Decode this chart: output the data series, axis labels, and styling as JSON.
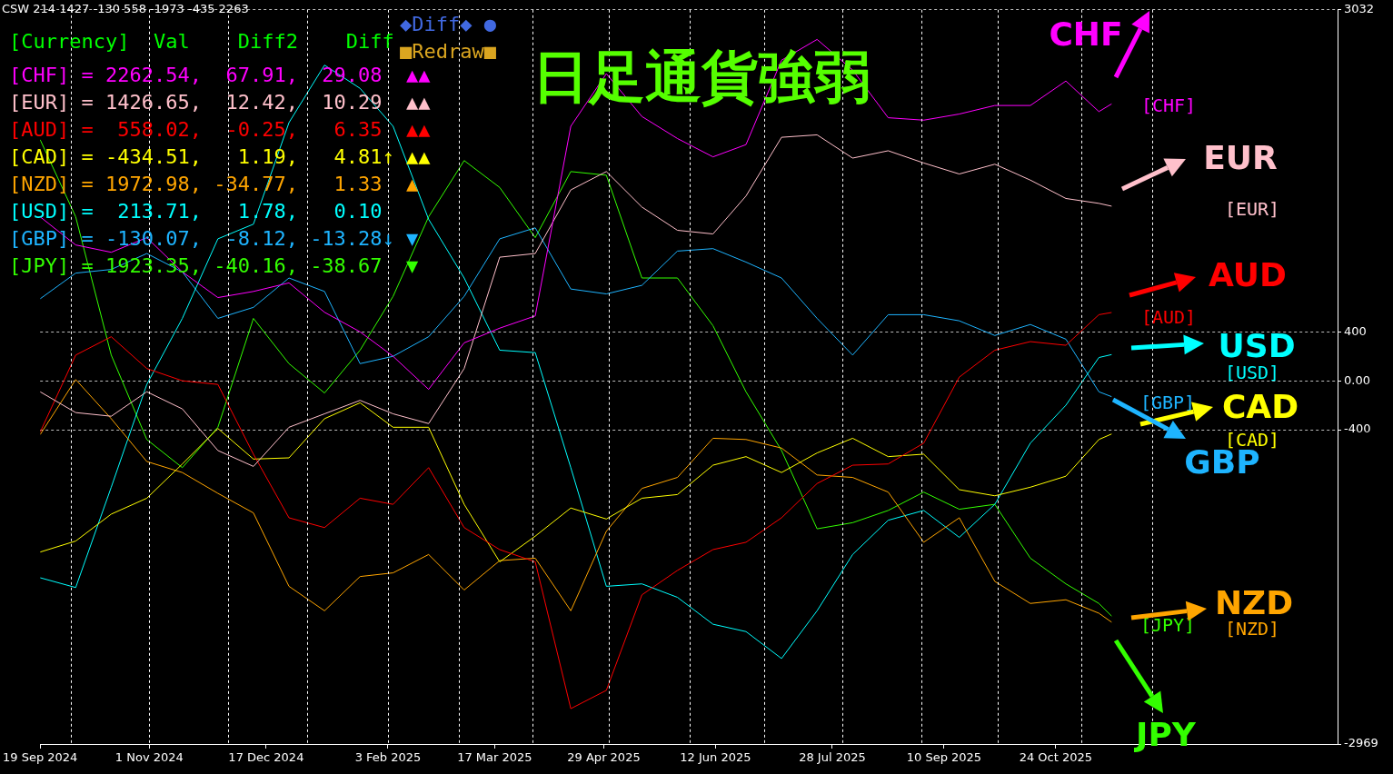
{
  "chart_data": {
    "type": "line",
    "title": "日足通貨強弱",
    "x": [
      "2024-09-19",
      "2024-10-03",
      "2024-10-17",
      "2024-10-31",
      "2024-11-14",
      "2024-11-28",
      "2024-12-12",
      "2024-12-26",
      "2025-01-09",
      "2025-01-23",
      "2025-02-05",
      "2025-02-19",
      "2025-03-05",
      "2025-03-19",
      "2025-04-02",
      "2025-04-16",
      "2025-04-30",
      "2025-05-14",
      "2025-05-28",
      "2025-06-11",
      "2025-06-24",
      "2025-07-08",
      "2025-07-22",
      "2025-08-05",
      "2025-08-19",
      "2025-09-02",
      "2025-09-16",
      "2025-09-30",
      "2025-10-14",
      "2025-10-28",
      "2025-11-10",
      "2025-11-15"
    ],
    "series": [
      {
        "name": "CHF",
        "color": "#ff00ff",
        "values": [
          1340,
          1110,
          1050,
          1170,
          890,
          680,
          730,
          800,
          560,
          400,
          200,
          -70,
          310,
          430,
          530,
          2080,
          2510,
          2160,
          1980,
          1830,
          1930,
          2620,
          2790,
          2540,
          2150,
          2130,
          2180,
          2250,
          2250,
          2450,
          2200,
          2263
        ]
      },
      {
        "name": "EUR",
        "color": "#ffc0cb",
        "values": [
          -90,
          -260,
          -290,
          -90,
          -230,
          -570,
          -700,
          -380,
          -270,
          -160,
          -270,
          -350,
          100,
          1010,
          1040,
          1560,
          1710,
          1420,
          1230,
          1200,
          1510,
          1990,
          2010,
          1820,
          1880,
          1780,
          1690,
          1770,
          1640,
          1490,
          1450,
          1427
        ]
      },
      {
        "name": "AUD",
        "color": "#ff0000",
        "values": [
          -420,
          210,
          360,
          100,
          0,
          -30,
          -600,
          -1120,
          -1200,
          -960,
          -1010,
          -710,
          -1200,
          -1380,
          -1480,
          -2680,
          -2530,
          -1750,
          -1550,
          -1380,
          -1320,
          -1120,
          -840,
          -690,
          -680,
          -510,
          30,
          250,
          320,
          290,
          540,
          558
        ]
      },
      {
        "name": "CAD",
        "color": "#ffff00",
        "values": [
          -1400,
          -1310,
          -1090,
          -960,
          -680,
          -390,
          -640,
          -630,
          -310,
          -180,
          -380,
          -380,
          -1010,
          -1480,
          -1270,
          -1040,
          -1130,
          -960,
          -930,
          -690,
          -620,
          -750,
          -590,
          -470,
          -620,
          -600,
          -890,
          -940,
          -870,
          -780,
          -480,
          -435
        ]
      },
      {
        "name": "NZD",
        "color": "#ffa500",
        "values": [
          -440,
          10,
          -310,
          -660,
          -750,
          -920,
          -1080,
          -1680,
          -1880,
          -1600,
          -1570,
          -1420,
          -1710,
          -1470,
          -1450,
          -1880,
          -1230,
          -880,
          -790,
          -470,
          -480,
          -550,
          -770,
          -790,
          -910,
          -1320,
          -1120,
          -1640,
          -1820,
          -1790,
          -1900,
          -1973
        ]
      },
      {
        "name": "USD",
        "color": "#00ffff",
        "values": [
          -1610,
          -1690,
          -870,
          -30,
          510,
          1160,
          1280,
          2110,
          2580,
          2390,
          2080,
          1320,
          840,
          250,
          230,
          -710,
          -1680,
          -1660,
          -1770,
          -1990,
          -2050,
          -2270,
          -1880,
          -1420,
          -1140,
          -1060,
          -1280,
          -1010,
          -510,
          -200,
          190,
          214
        ]
      },
      {
        "name": "GBP",
        "color": "#1eb4ff",
        "values": [
          670,
          880,
          910,
          1040,
          890,
          510,
          600,
          840,
          730,
          140,
          200,
          360,
          690,
          1160,
          1250,
          750,
          710,
          780,
          1060,
          1080,
          970,
          840,
          510,
          210,
          540,
          540,
          490,
          370,
          460,
          340,
          -90,
          -130
        ]
      },
      {
        "name": "JPY",
        "color": "#33ff00",
        "values": [
          1970,
          1340,
          210,
          -480,
          -710,
          -380,
          510,
          140,
          -100,
          250,
          690,
          1340,
          1800,
          1580,
          1170,
          1710,
          1680,
          840,
          840,
          450,
          -90,
          -570,
          -1210,
          -1160,
          -1060,
          -910,
          -1050,
          -1010,
          -1450,
          -1660,
          -1820,
          -1923
        ]
      }
    ],
    "xlim": [
      "2024-09-19",
      "2026-02-12"
    ],
    "xticks": [
      {
        "value": "2024-09-19",
        "label": "19 Sep 2024"
      },
      {
        "value": "2024-11-01",
        "label": "1 Nov 2024"
      },
      {
        "value": "2024-12-17",
        "label": "17 Dec 2024"
      },
      {
        "value": "2025-02-03",
        "label": "3 Feb 2025"
      },
      {
        "value": "2025-03-17",
        "label": "17 Mar 2025"
      },
      {
        "value": "2025-04-29",
        "label": "29 Apr 2025"
      },
      {
        "value": "2025-06-12",
        "label": "12 Jun 2025"
      },
      {
        "value": "2025-07-28",
        "label": "28 Jul 2025"
      },
      {
        "value": "2025-09-10",
        "label": "10 Sep 2025"
      },
      {
        "value": "2025-10-24",
        "label": "24 Oct 2025"
      }
    ],
    "ylim": [
      -2969,
      3032
    ],
    "yticks": [
      -2969,
      -400,
      {
        "value": 0,
        "label": "0.00"
      },
      400,
      3032
    ],
    "grid": "y",
    "legend": "right",
    "ref_lines": [
      {
        "axis": "x",
        "value": "2024-10-01",
        "color": "#ffffff",
        "line_style": "dashed"
      },
      {
        "axis": "x",
        "value": "2024-11-01",
        "color": "#ffffff",
        "line_style": "dashed"
      },
      {
        "axis": "x",
        "value": "2024-12-02",
        "color": "#ffffff",
        "line_style": "dashed"
      },
      {
        "axis": "x",
        "value": "2025-01-02",
        "color": "#ffffff",
        "line_style": "dashed"
      },
      {
        "axis": "x",
        "value": "2025-02-03",
        "color": "#ffffff",
        "line_style": "dashed"
      },
      {
        "axis": "x",
        "value": "2025-03-03",
        "color": "#ffffff",
        "line_style": "dashed"
      },
      {
        "axis": "x",
        "value": "2025-04-01",
        "color": "#ffffff",
        "line_style": "dashed"
      },
      {
        "axis": "x",
        "value": "2025-05-01",
        "color": "#ffffff",
        "line_style": "dashed"
      },
      {
        "axis": "x",
        "value": "2025-06-02",
        "color": "#ffffff",
        "line_style": "dashed"
      },
      {
        "axis": "x",
        "value": "2025-07-01",
        "color": "#ffffff",
        "line_style": "dashed"
      },
      {
        "axis": "x",
        "value": "2025-08-01",
        "color": "#ffffff",
        "line_style": "dashed"
      },
      {
        "axis": "x",
        "value": "2025-09-01",
        "color": "#ffffff",
        "line_style": "dashed"
      },
      {
        "axis": "x",
        "value": "2025-10-01",
        "color": "#ffffff",
        "line_style": "dashed"
      },
      {
        "axis": "x",
        "value": "2025-11-03",
        "color": "#ffffff",
        "line_style": "dashed"
      },
      {
        "axis": "x",
        "value": "2025-12-01",
        "color": "#ffffff",
        "line_style": "dashed"
      }
    ],
    "annotations": [
      "CSW 214 1427 -130 558 -1973 -435 2263",
      "[Currency]  Val    Diff2    Diff",
      "[CHF] = 2262.54,  67.91,  29.08  ▲▲",
      "[EUR] = 1426.65,  12.42,  10.29  ▲▲",
      "[AUD] =  558.02,  -0.25,   6.35  ▲▲",
      "[CAD] = -434.51,   1.19,   4.81↑ ▲▲",
      "[NZD] = 1972.98, -34.77,   1.33  ▲",
      "[USD] =  213.71,   1.78,   0.10",
      "[GBP] = -130.07,  -8.12, -13.28↓ ▼",
      "[JPY] = 1923.35, -40.16, -38.67  ▼",
      "◆Diff◆ ●",
      "■Redraw■",
      "[CHF]",
      "[EUR]",
      "[AUD]",
      "[CAD]",
      "[NZD]",
      "[USD]",
      "[GBP]",
      "[JPY]"
    ]
  }
}
